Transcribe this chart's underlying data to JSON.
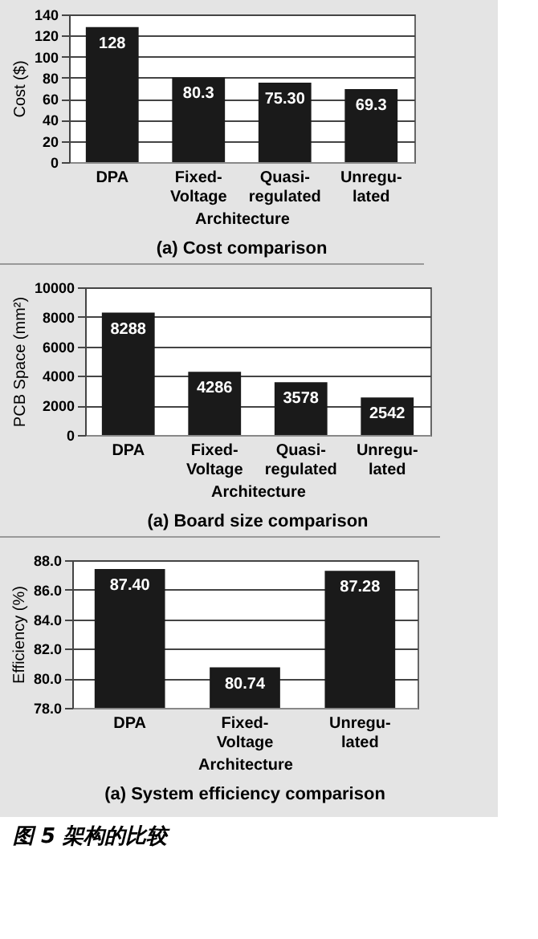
{
  "chart_data": [
    {
      "type": "bar",
      "title": "(a) Cost comparison",
      "xlabel": "Architecture",
      "ylabel": "Cost ($)",
      "categories": [
        "DPA",
        "Fixed-Voltage",
        "Quasi-regulated",
        "Unregu-lated"
      ],
      "values": [
        128,
        80.3,
        75.3,
        69.3
      ],
      "value_labels": [
        "128",
        "80.3",
        "75.30",
        "69.3"
      ],
      "color": "#1a1a1a",
      "ylim": [
        0,
        140
      ],
      "yticks": [
        0,
        20,
        40,
        60,
        80,
        100,
        120,
        140
      ],
      "grid": "y"
    },
    {
      "type": "bar",
      "title": "(a) Board size comparison",
      "xlabel": "Architecture",
      "ylabel": "PCB Space (mm²)",
      "categories": [
        "DPA",
        "Fixed-Voltage",
        "Quasi-regulated",
        "Unregu-lated"
      ],
      "values": [
        8288,
        4286,
        3578,
        2542
      ],
      "value_labels": [
        "8288",
        "4286",
        "3578",
        "2542"
      ],
      "color": "#1a1a1a",
      "ylim": [
        0,
        10000
      ],
      "yticks": [
        0,
        2000,
        4000,
        6000,
        8000,
        10000
      ],
      "grid": "y"
    },
    {
      "type": "bar",
      "title": "(a) System efficiency comparison",
      "xlabel": "Architecture",
      "ylabel": "Efficiency (%)",
      "categories": [
        "DPA",
        "Fixed-Voltage",
        "Unregu-lated"
      ],
      "values": [
        87.4,
        80.74,
        87.28
      ],
      "value_labels": [
        "87.40",
        "80.74",
        "87.28"
      ],
      "color": "#1a1a1a",
      "ylim": [
        78,
        88
      ],
      "yticks": [
        {
          "value": 78,
          "label": "78.0"
        },
        {
          "value": 80,
          "label": "80.0"
        },
        {
          "value": 82,
          "label": "82.0"
        },
        {
          "value": 84,
          "label": "84.0"
        },
        {
          "value": 86,
          "label": "86.0"
        },
        {
          "value": 88,
          "label": "88.0"
        }
      ],
      "grid": "y",
      "annotations": [
        "图 5 架构的比较"
      ]
    }
  ]
}
